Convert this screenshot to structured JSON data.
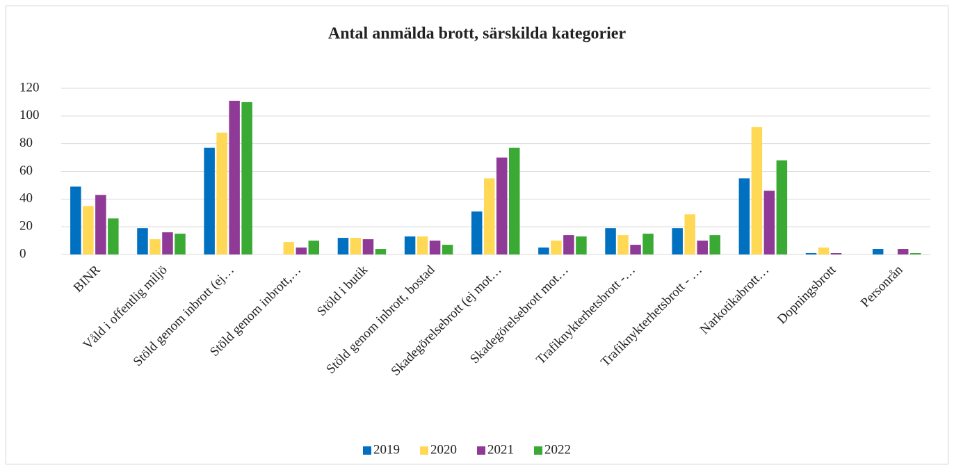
{
  "chart_data": {
    "type": "bar",
    "title": "Antal anmälda brott, särskilda kategorier",
    "categories": [
      "BINR",
      "Våld i offentlig miljö",
      "Stöld genom inbrott (ej…",
      "Stöld genom inbrott,…",
      "Stöld i butik",
      "Stöld genom inbrott, bostad",
      "Skadegörelsebrott (ej mot…",
      "Skadegörelsebrott mot…",
      "Trafiknykterhetsbrott -…",
      "Trafiknykterhetsbrott - …",
      "Narkotikabrott…",
      "Dopningsbrott",
      "Personrån"
    ],
    "series": [
      {
        "name": "2019",
        "color": "#0070c0",
        "values": [
          49,
          19,
          77,
          0,
          12,
          13,
          31,
          5,
          19,
          19,
          55,
          1,
          4
        ]
      },
      {
        "name": "2020",
        "color": "#ffd955",
        "values": [
          35,
          11,
          88,
          9,
          12,
          13,
          55,
          10,
          14,
          29,
          92,
          5,
          0
        ]
      },
      {
        "name": "2021",
        "color": "#8e3a96",
        "values": [
          43,
          16,
          111,
          5,
          11,
          10,
          70,
          14,
          7,
          10,
          46,
          1,
          4
        ]
      },
      {
        "name": "2022",
        "color": "#3aaa35",
        "values": [
          26,
          15,
          110,
          10,
          4,
          7,
          77,
          13,
          15,
          14,
          68,
          0,
          1
        ]
      }
    ],
    "ylim": [
      0,
      120
    ],
    "yticks": [
      0,
      20,
      40,
      60,
      80,
      100,
      120
    ],
    "grid": true,
    "legend": "bottom"
  }
}
